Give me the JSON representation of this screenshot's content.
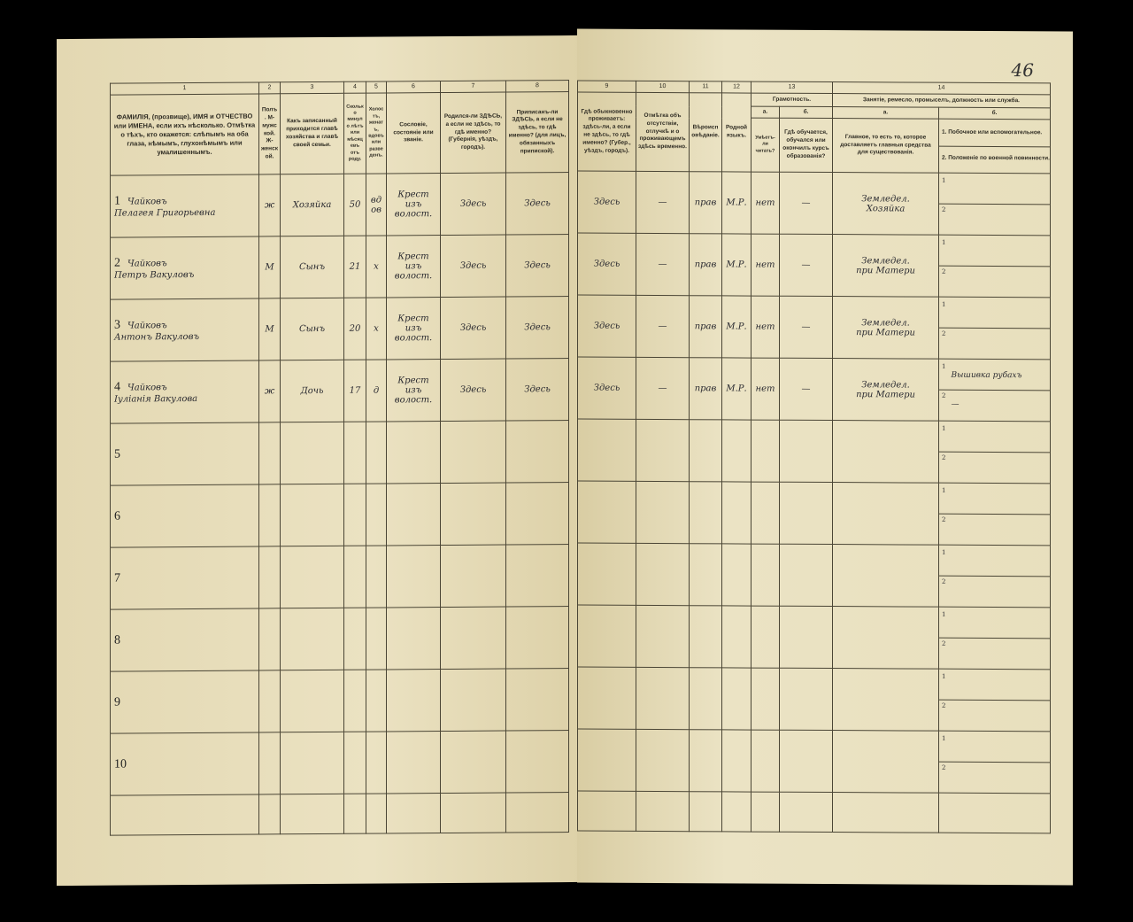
{
  "page_number": "46",
  "left": {
    "col_numbers": [
      "1",
      "2",
      "3",
      "4",
      "5",
      "6",
      "7",
      "8"
    ],
    "headers": [
      "ФАМИЛІЯ, (прозвище), ИМЯ и ОТЧЕСТВО или ИМЕНА, если ихъ нѣсколько. Отмѣтка о тѣхъ, кто окажется: слѣпымъ на оба глаза, нѣмымъ, глухонѣмымъ или умалишеннымъ.",
      "Полъ. М-мужской. Ж-женской.",
      "Какъ записанный приходится главѣ хозяйства и главѣ своей семьи.",
      "Сколько минуло лѣтъ или мѣсяцевъ отъ роду.",
      "Холостъ, женатъ, вдовъ или разведенъ.",
      "Сословіе, состояніе или званіе.",
      "Родился-ли ЗДѢСЬ, а если не здѣсь, то гдѣ именно? (Губернія, уѣздъ, городъ).",
      "Приписанъ-ли ЗДѢСЬ, а если не здѣсь, то гдѣ именно? (для лицъ, обязанныхъ припиской)."
    ]
  },
  "right": {
    "col_numbers": [
      "9",
      "10",
      "11",
      "12",
      "13",
      "14"
    ],
    "headers": {
      "c9": "Гдѣ обыкновенно проживаетъ: здѣсь-ли, а если не здѣсь, то гдѣ именно? (Губер., уѣздъ, городъ).",
      "c10": "Отмѣтка объ отсутствіи, отлучкѣ и о проживающемъ здѣсь временно.",
      "c11": "Вѣроисповѣданіе.",
      "c12": "Родной языкъ.",
      "c13": "Грамотность.",
      "c13a_letter": "а.",
      "c13b_letter": "б.",
      "c13a": "Умѣетъ-ли читать?",
      "c13b": "Гдѣ обучается, обучался или окончилъ курсъ образованія?",
      "c14": "Занятіе, ремесло, промыселъ, должность или служба.",
      "c14a_letter": "а.",
      "c14b_letter": "б.",
      "c14a": "Главное, то есть то, которое доставляетъ главныя средства для существованія.",
      "c14b1": "1. Побочное или вспомогательное.",
      "c14b2": "2. Положеніе по военной повинности."
    }
  },
  "rows": [
    {
      "n": "1",
      "surname": "Чайковъ",
      "given": "Пелагея Григорьевна",
      "sex": "ж",
      "relation": "Хозяйка",
      "age": "50",
      "marital": "вдов",
      "estate1": "Крест",
      "estate2": "изъ волост.",
      "born": "Здесь",
      "registered": "Здесь",
      "residence": "Здесь",
      "absence": "—",
      "religion": "прав",
      "language": "М.Р.",
      "literate": "нет",
      "school": "—",
      "occ1": "Земледел.",
      "occ2": "Хозяйка",
      "side1": "",
      "side2": ""
    },
    {
      "n": "2",
      "surname": "Чайковъ",
      "given": "Петръ Вакуловъ",
      "sex": "М",
      "relation": "Сынъ",
      "age": "21",
      "marital": "х",
      "estate1": "Крест",
      "estate2": "изъ волост.",
      "born": "Здесь",
      "registered": "Здесь",
      "residence": "Здесь",
      "absence": "—",
      "religion": "прав",
      "language": "М.Р.",
      "literate": "нет",
      "school": "—",
      "occ1": "Земледел.",
      "occ2": "при Матери",
      "side1": "",
      "side2": ""
    },
    {
      "n": "3",
      "surname": "Чайковъ",
      "given": "Антонъ Вакуловъ",
      "sex": "М",
      "relation": "Сынъ",
      "age": "20",
      "marital": "х",
      "estate1": "Крест",
      "estate2": "изъ волост.",
      "born": "Здесь",
      "registered": "Здесь",
      "residence": "Здесь",
      "absence": "—",
      "religion": "прав",
      "language": "М.Р.",
      "literate": "нет",
      "school": "—",
      "occ1": "Земледел.",
      "occ2": "при Матери",
      "side1": "",
      "side2": ""
    },
    {
      "n": "4",
      "surname": "Чайковъ",
      "given": "Іуліанія Вакулова",
      "sex": "ж",
      "relation": "Дочь",
      "age": "17",
      "marital": "д",
      "estate1": "Крест",
      "estate2": "изъ волост.",
      "born": "Здесь",
      "registered": "Здесь",
      "residence": "Здесь",
      "absence": "—",
      "religion": "прав",
      "language": "М.Р.",
      "literate": "нет",
      "school": "—",
      "occ1": "Земледел.",
      "occ2": "при Матери",
      "side1": "Вышивка рубахъ",
      "side2": "—"
    },
    {
      "n": "5"
    },
    {
      "n": "6"
    },
    {
      "n": "7"
    },
    {
      "n": "8"
    },
    {
      "n": "9"
    },
    {
      "n": "10"
    }
  ],
  "sub_numbers": [
    "1",
    "2"
  ]
}
